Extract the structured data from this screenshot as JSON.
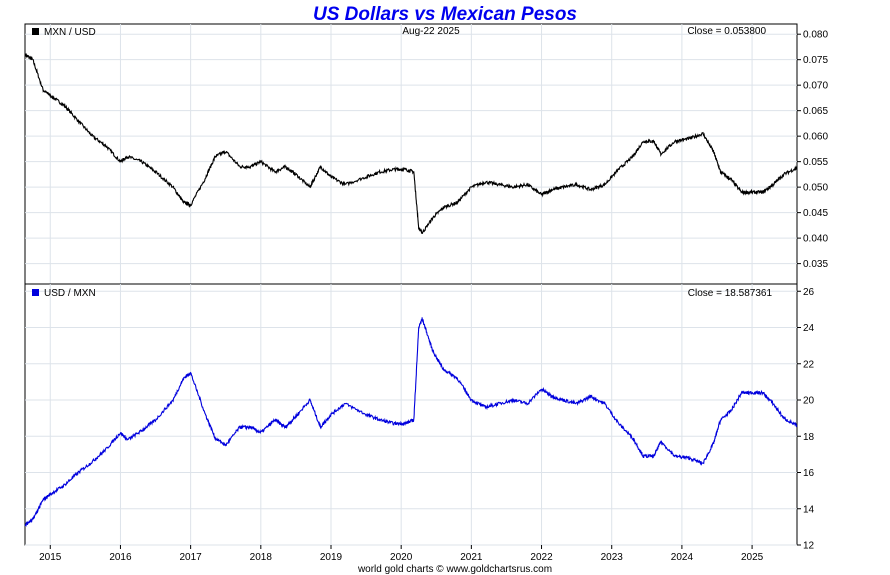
{
  "title": "US Dollars vs Mexican Pesos",
  "date_label": "Aug-22  2025",
  "footer": "world gold charts © www.goldchartsrus.com",
  "colors": {
    "title": "#0000ee",
    "top_series": "#000000",
    "bottom_series": "#0000dd",
    "grid": "#dde3ea",
    "frame": "#000000"
  },
  "chart_data": [
    {
      "type": "line",
      "legend": "MXN / USD",
      "close_label": "Close = 0.053800",
      "close": 0.0538,
      "ylim": [
        0.031,
        0.082
      ],
      "yticks": [
        "0.080",
        "0.075",
        "0.070",
        "0.065",
        "0.060",
        "0.055",
        "0.050",
        "0.045",
        "0.040",
        "0.035"
      ],
      "xlim": [
        2014.64,
        2025.64
      ],
      "x": [
        2014.64,
        2014.75,
        2014.9,
        2015.0,
        2015.2,
        2015.4,
        2015.6,
        2015.8,
        2016.0,
        2016.1,
        2016.3,
        2016.5,
        2016.75,
        2016.9,
        2017.0,
        2017.2,
        2017.35,
        2017.5,
        2017.7,
        2017.85,
        2018.0,
        2018.2,
        2018.35,
        2018.5,
        2018.7,
        2018.85,
        2019.0,
        2019.2,
        2019.5,
        2019.7,
        2019.9,
        2020.05,
        2020.18,
        2020.25,
        2020.3,
        2020.45,
        2020.6,
        2020.8,
        2021.0,
        2021.2,
        2021.4,
        2021.6,
        2021.8,
        2022.0,
        2022.15,
        2022.3,
        2022.5,
        2022.7,
        2022.9,
        2023.1,
        2023.3,
        2023.45,
        2023.6,
        2023.7,
        2023.9,
        2024.1,
        2024.3,
        2024.45,
        2024.55,
        2024.7,
        2024.85,
        2025.0,
        2025.15,
        2025.3,
        2025.45,
        2025.64
      ],
      "y": [
        0.076,
        0.075,
        0.069,
        0.068,
        0.066,
        0.063,
        0.06,
        0.058,
        0.055,
        0.056,
        0.055,
        0.053,
        0.05,
        0.047,
        0.0465,
        0.0515,
        0.056,
        0.057,
        0.054,
        0.054,
        0.055,
        0.053,
        0.054,
        0.0525,
        0.05,
        0.054,
        0.052,
        0.0505,
        0.052,
        0.053,
        0.0535,
        0.0535,
        0.053,
        0.042,
        0.041,
        0.044,
        0.046,
        0.047,
        0.05,
        0.051,
        0.0505,
        0.05,
        0.0505,
        0.0485,
        0.0495,
        0.05,
        0.0505,
        0.0495,
        0.0505,
        0.0535,
        0.056,
        0.059,
        0.059,
        0.0565,
        0.059,
        0.0595,
        0.0605,
        0.057,
        0.053,
        0.0515,
        0.049,
        0.049,
        0.049,
        0.0505,
        0.0525,
        0.0538
      ]
    },
    {
      "type": "line",
      "legend": "USD / MXN",
      "close_label": "Close = 18.587361",
      "close": 18.587361,
      "ylim": [
        12,
        26.4
      ],
      "yticks": [
        "26",
        "24",
        "22",
        "20",
        "18",
        "16",
        "14",
        "12"
      ],
      "xlim": [
        2014.64,
        2025.64
      ],
      "x": [
        2014.64,
        2014.75,
        2014.9,
        2015.0,
        2015.2,
        2015.4,
        2015.6,
        2015.8,
        2016.0,
        2016.1,
        2016.3,
        2016.5,
        2016.75,
        2016.9,
        2017.0,
        2017.2,
        2017.35,
        2017.5,
        2017.7,
        2017.85,
        2018.0,
        2018.2,
        2018.35,
        2018.5,
        2018.7,
        2018.85,
        2019.0,
        2019.2,
        2019.5,
        2019.7,
        2019.9,
        2020.05,
        2020.18,
        2020.25,
        2020.3,
        2020.45,
        2020.6,
        2020.8,
        2021.0,
        2021.2,
        2021.4,
        2021.6,
        2021.8,
        2022.0,
        2022.15,
        2022.3,
        2022.5,
        2022.7,
        2022.9,
        2023.1,
        2023.3,
        2023.45,
        2023.6,
        2023.7,
        2023.9,
        2024.1,
        2024.3,
        2024.45,
        2024.55,
        2024.7,
        2024.85,
        2025.0,
        2025.15,
        2025.3,
        2025.45,
        2025.64
      ],
      "y": [
        13.1,
        13.4,
        14.5,
        14.8,
        15.3,
        16.0,
        16.6,
        17.3,
        18.2,
        17.8,
        18.3,
        18.9,
        20.0,
        21.2,
        21.5,
        19.3,
        17.9,
        17.5,
        18.5,
        18.5,
        18.2,
        18.9,
        18.5,
        19.1,
        20.0,
        18.5,
        19.2,
        19.8,
        19.2,
        18.9,
        18.7,
        18.7,
        18.9,
        24.0,
        24.5,
        22.7,
        21.7,
        21.2,
        20.0,
        19.6,
        19.8,
        20.0,
        19.8,
        20.6,
        20.2,
        20.0,
        19.8,
        20.2,
        19.8,
        18.7,
        17.9,
        16.9,
        16.9,
        17.7,
        16.9,
        16.8,
        16.5,
        17.6,
        18.9,
        19.4,
        20.4,
        20.4,
        20.4,
        19.8,
        19.0,
        18.587
      ]
    }
  ],
  "x_ticks": [
    "2015",
    "2016",
    "2017",
    "2018",
    "2019",
    "2020",
    "2021",
    "2022",
    "2023",
    "2024",
    "2025"
  ]
}
